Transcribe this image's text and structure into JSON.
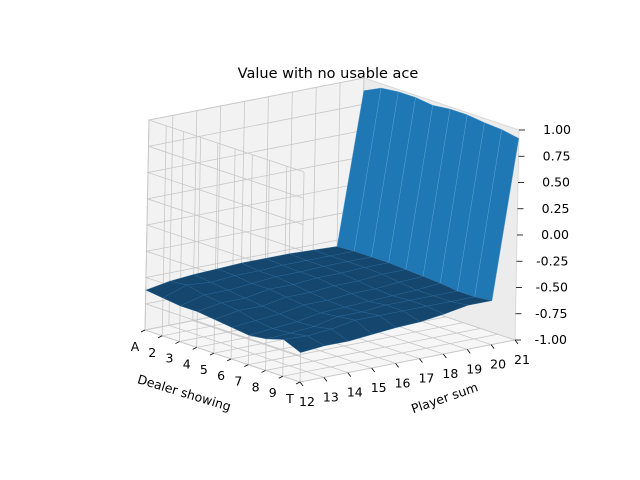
{
  "chart_data": {
    "type": "surface3d",
    "title": "Value with no usable ace",
    "xlabel": "Dealer showing",
    "ylabel": "Player sum",
    "x_ticks": [
      "A",
      "2",
      "3",
      "4",
      "5",
      "6",
      "7",
      "8",
      "9",
      "T"
    ],
    "y_ticks": [
      "12",
      "13",
      "14",
      "15",
      "16",
      "17",
      "18",
      "19",
      "20",
      "21"
    ],
    "z_ticks": [
      "1.00",
      "0.75",
      "0.50",
      "0.25",
      "0.00",
      "-0.25",
      "-0.50",
      "-0.75",
      "-1.00"
    ],
    "zlim": [
      -1.0,
      1.0
    ],
    "grid": true,
    "colors": {
      "surface_light": "#1f77b4",
      "surface_dark": "#15466d",
      "pane": "#f2f2f2",
      "grid": "#c8c8c8"
    },
    "values": [
      [
        -0.62,
        -0.64,
        -0.66,
        -0.66,
        -0.68,
        -0.7,
        -0.72,
        -0.7,
        -0.65,
        -0.72
      ],
      [
        -0.58,
        -0.56,
        -0.6,
        -0.62,
        -0.64,
        -0.68,
        -0.7,
        -0.69,
        -0.66,
        -0.7
      ],
      [
        -0.56,
        -0.58,
        -0.6,
        -0.62,
        -0.64,
        -0.66,
        -0.68,
        -0.67,
        -0.64,
        -0.7
      ],
      [
        -0.55,
        -0.56,
        -0.58,
        -0.58,
        -0.6,
        -0.62,
        -0.64,
        -0.62,
        -0.6,
        -0.68
      ],
      [
        -0.54,
        -0.56,
        -0.56,
        -0.58,
        -0.6,
        -0.62,
        -0.63,
        -0.62,
        -0.6,
        -0.66
      ],
      [
        -0.54,
        -0.55,
        -0.56,
        -0.56,
        -0.58,
        -0.6,
        -0.62,
        -0.6,
        -0.6,
        -0.65
      ],
      [
        -0.54,
        -0.55,
        -0.55,
        -0.56,
        -0.58,
        -0.6,
        -0.61,
        -0.6,
        -0.6,
        -0.62
      ],
      [
        -0.55,
        -0.55,
        -0.55,
        -0.55,
        -0.56,
        -0.58,
        -0.6,
        -0.6,
        -0.6,
        -0.58
      ],
      [
        -0.56,
        -0.55,
        -0.55,
        -0.55,
        -0.56,
        -0.57,
        -0.58,
        -0.6,
        -0.6,
        -0.58
      ],
      [
        0.88,
        0.96,
        0.98,
        0.98,
        0.96,
        0.98,
        0.98,
        0.96,
        0.95,
        0.92
      ]
    ]
  }
}
